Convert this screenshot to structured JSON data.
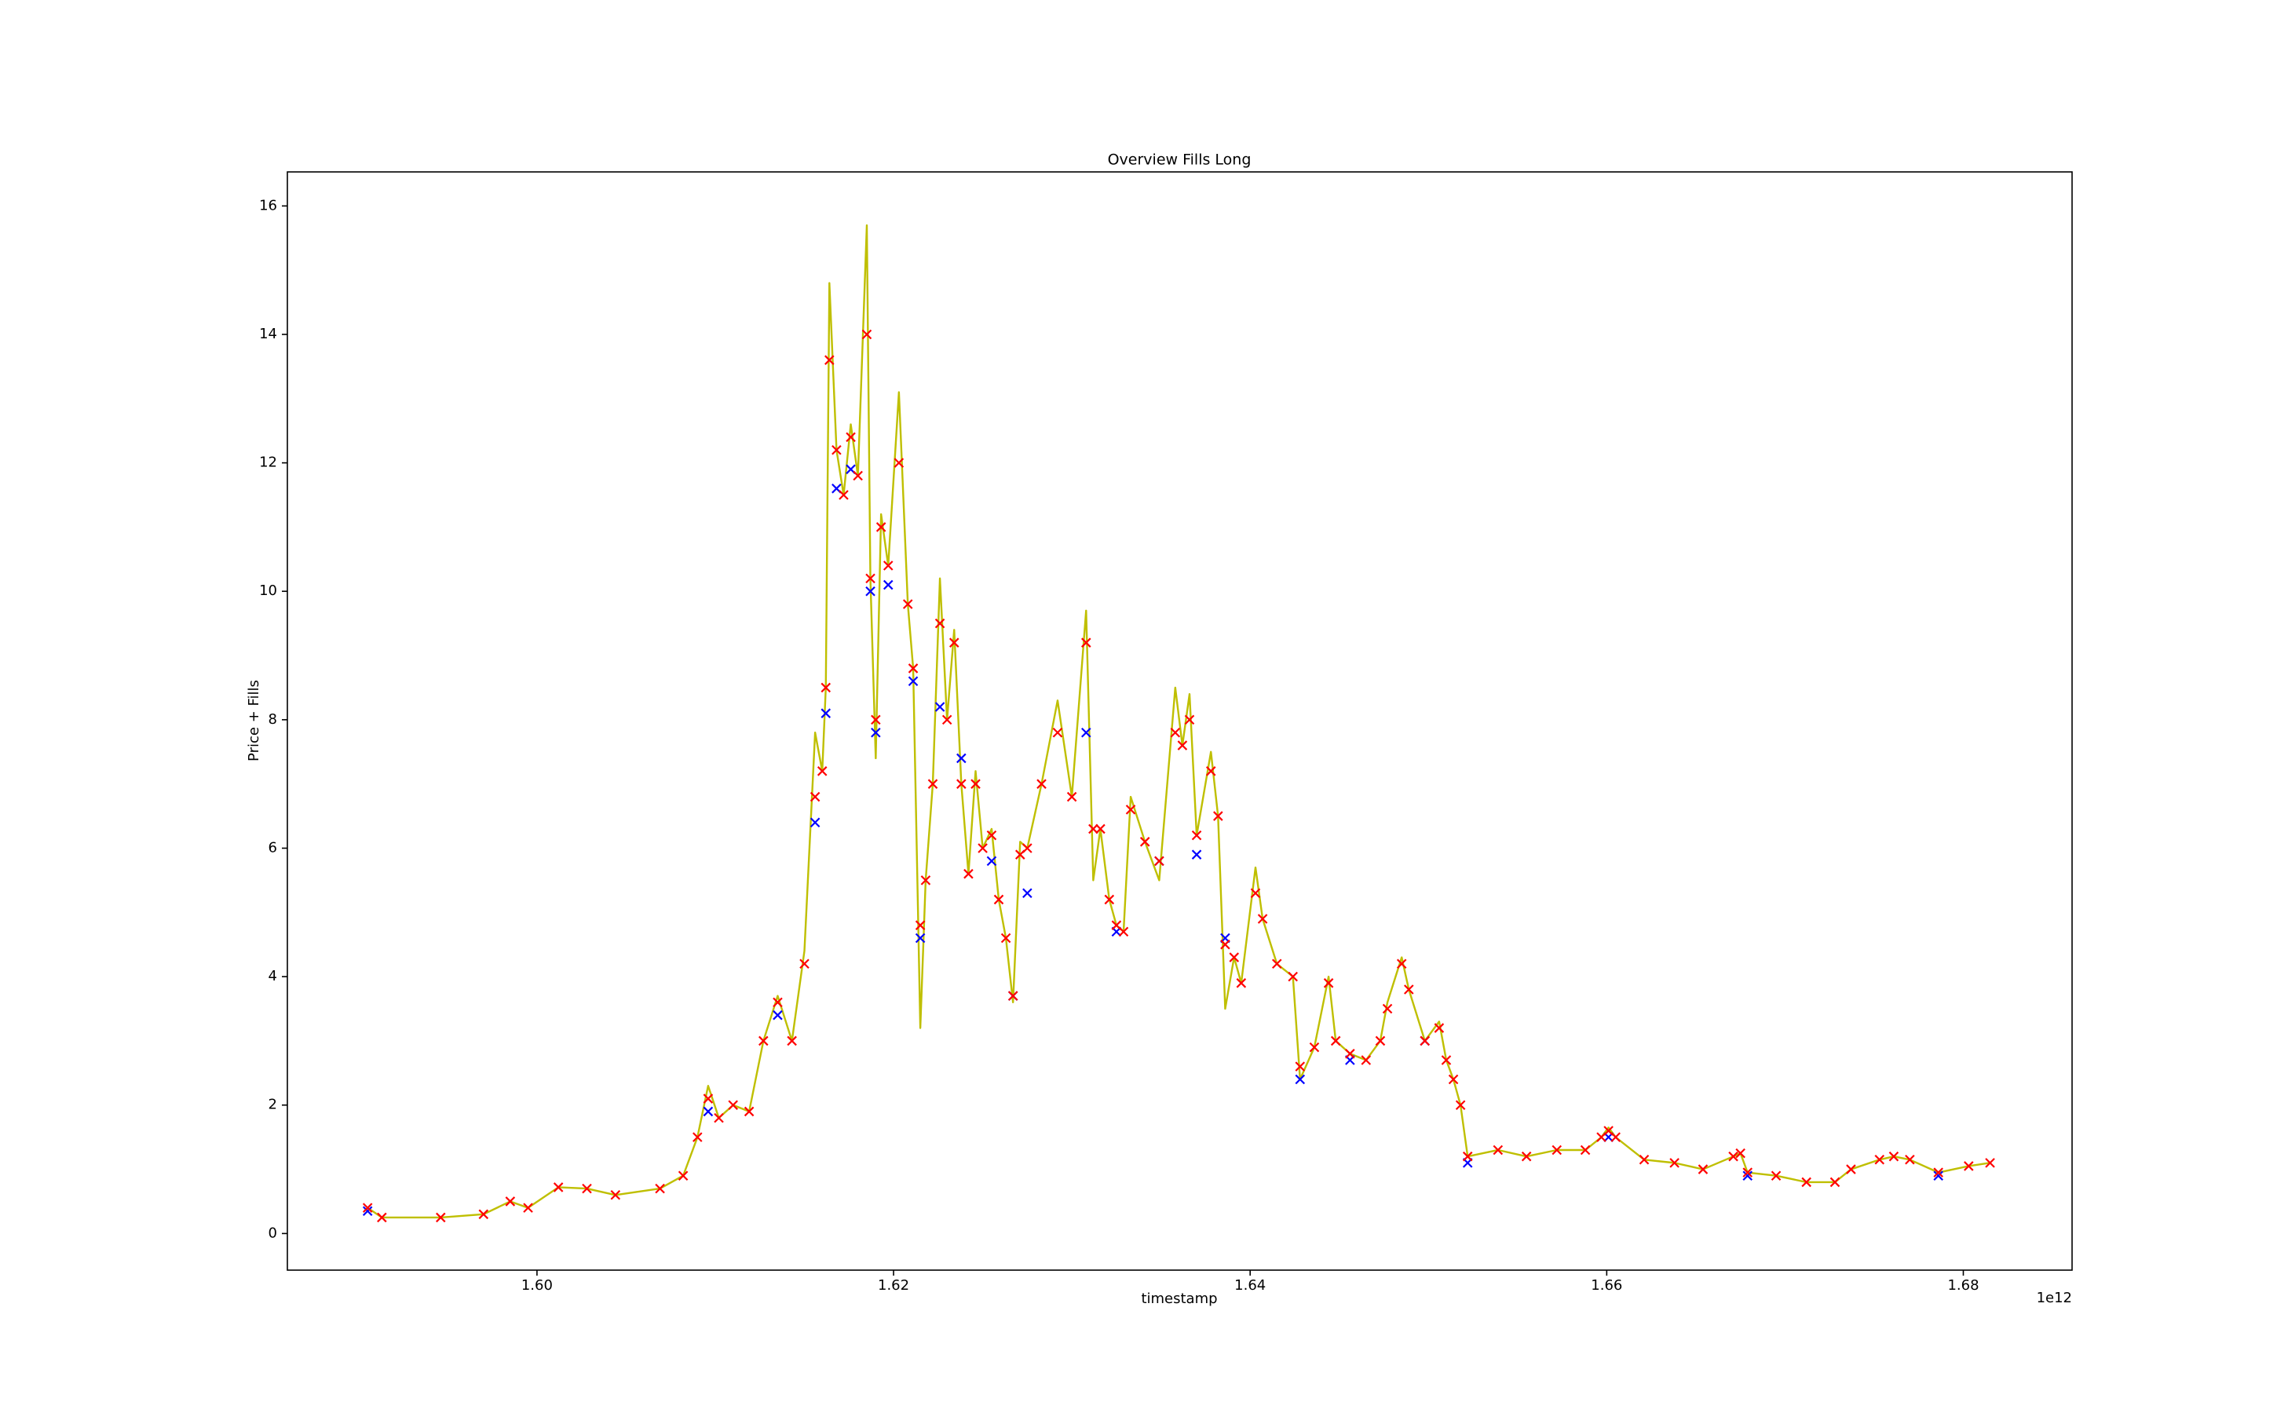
{
  "chart_data": {
    "type": "line",
    "title": "Overview Fills Long",
    "x_label": "timestamp",
    "y_label": "Price + Fills",
    "x_offset_text": "1e12",
    "xlim": [
      1586000000000.0,
      1686100000000.0
    ],
    "ylim": [
      -0.57,
      16.53
    ],
    "xticks": [
      {
        "value": 1600000000000.0,
        "label": "1.60"
      },
      {
        "value": 1620000000000.0,
        "label": "1.62"
      },
      {
        "value": 1640000000000.0,
        "label": "1.64"
      },
      {
        "value": 1660000000000.0,
        "label": "1.66"
      },
      {
        "value": 1680000000000.0,
        "label": "1.68"
      }
    ],
    "yticks": [
      0,
      2,
      4,
      6,
      8,
      10,
      12,
      14,
      16
    ],
    "grid": false,
    "series": [
      {
        "color": "#bfbf00",
        "x": [
          1590500000000.0,
          1591300000000.0,
          1594600000000.0,
          1597000000000.0,
          1598500000000.0,
          1599500000000.0,
          1601200000000.0,
          1602800000000.0,
          1604400000000.0,
          1606900000000.0,
          1608200000000.0,
          1609000000000.0,
          1609600000000.0,
          1610200000000.0,
          1611000000000.0,
          1611900000000.0,
          1612700000000.0,
          1613500000000.0,
          1614300000000.0,
          1615000000000.0,
          1615600000000.0,
          1616000000000.0,
          1616200000000.0,
          1616400000000.0,
          1616800000000.0,
          1617200000000.0,
          1617600000000.0,
          1618000000000.0,
          1618500000000.0,
          1618700000000.0,
          1619000000000.0,
          1619300000000.0,
          1619700000000.0,
          1620300000000.0,
          1620800000000.0,
          1621100000000.0,
          1621500000000.0,
          1621800000000.0,
          1622200000000.0,
          1622600000000.0,
          1623000000000.0,
          1623400000000.0,
          1623800000000.0,
          1624200000000.0,
          1624600000000.0,
          1625000000000.0,
          1625500000000.0,
          1625900000000.0,
          1626300000000.0,
          1626700000000.0,
          1627100000000.0,
          1627500000000.0,
          1628300000000.0,
          1629200000000.0,
          1630000000000.0,
          1630800000000.0,
          1631200000000.0,
          1631600000000.0,
          1632100000000.0,
          1632500000000.0,
          1632900000000.0,
          1633300000000.0,
          1634100000000.0,
          1634900000000.0,
          1635800000000.0,
          1636200000000.0,
          1636600000000.0,
          1637000000000.0,
          1637800000000.0,
          1638200000000.0,
          1638600000000.0,
          1639100000000.0,
          1639500000000.0,
          1640300000000.0,
          1640700000000.0,
          1641500000000.0,
          1642400000000.0,
          1642800000000.0,
          1643600000000.0,
          1644400000000.0,
          1644800000000.0,
          1645600000000.0,
          1646500000000.0,
          1647300000000.0,
          1647700000000.0,
          1648500000000.0,
          1648900000000.0,
          1649800000000.0,
          1650600000000.0,
          1651000000000.0,
          1651400000000.0,
          1651800000000.0,
          1652200000000.0,
          1653900000000.0,
          1655500000000.0,
          1657200000000.0,
          1658800000000.0,
          1659700000000.0,
          1660100000000.0,
          1660500000000.0,
          1662100000000.0,
          1663800000000.0,
          1665400000000.0,
          1667100000000.0,
          1667500000000.0,
          1667900000000.0,
          1669500000000.0,
          1671200000000.0,
          1672800000000.0,
          1673700000000.0,
          1675300000000.0,
          1676100000000.0,
          1677000000000.0,
          1678600000000.0,
          1680300000000.0,
          1681500000000.0
        ],
        "values": [
          0.4,
          0.25,
          0.25,
          0.3,
          0.5,
          0.4,
          0.72,
          0.7,
          0.6,
          0.7,
          0.9,
          1.5,
          2.3,
          1.8,
          2.0,
          1.9,
          3.0,
          3.7,
          3.0,
          4.4,
          7.8,
          7.2,
          8.5,
          14.8,
          12.2,
          11.5,
          12.6,
          11.8,
          15.7,
          10.2,
          7.4,
          11.2,
          10.4,
          13.1,
          9.8,
          8.8,
          3.2,
          5.5,
          7.0,
          10.2,
          8.0,
          9.4,
          7.0,
          5.6,
          7.2,
          6.0,
          6.3,
          5.2,
          4.6,
          3.6,
          6.1,
          6.0,
          7.0,
          8.3,
          6.8,
          9.7,
          5.5,
          6.3,
          5.2,
          4.8,
          4.7,
          6.8,
          6.1,
          5.5,
          8.5,
          7.6,
          8.4,
          6.2,
          7.5,
          6.5,
          3.5,
          4.3,
          3.9,
          5.7,
          4.9,
          4.2,
          4.0,
          2.4,
          2.9,
          4.0,
          3.0,
          2.8,
          2.7,
          3.0,
          3.6,
          4.3,
          3.8,
          3.0,
          3.3,
          2.7,
          2.4,
          2.0,
          1.2,
          1.3,
          1.2,
          1.3,
          1.3,
          1.5,
          1.65,
          1.5,
          1.15,
          1.1,
          1.0,
          1.2,
          1.25,
          0.95,
          0.9,
          0.8,
          0.8,
          1.0,
          1.15,
          1.2,
          1.15,
          0.95,
          1.05,
          1.1
        ]
      },
      {
        "color": "#0000ff",
        "marker": "x",
        "x": [
          1590500000000.0,
          1609600000000.0,
          1613500000000.0,
          1615600000000.0,
          1616200000000.0,
          1616800000000.0,
          1617600000000.0,
          1618700000000.0,
          1619000000000.0,
          1619700000000.0,
          1621100000000.0,
          1621500000000.0,
          1622600000000.0,
          1623800000000.0,
          1625500000000.0,
          1626700000000.0,
          1627500000000.0,
          1630800000000.0,
          1632500000000.0,
          1634900000000.0,
          1637000000000.0,
          1638600000000.0,
          1642800000000.0,
          1645600000000.0,
          1649800000000.0,
          1652200000000.0,
          1660100000000.0,
          1667900000000.0,
          1678600000000.0
        ],
        "values": [
          0.35,
          1.9,
          3.4,
          6.4,
          8.1,
          11.6,
          11.9,
          10.0,
          7.8,
          10.1,
          8.6,
          4.6,
          8.2,
          7.4,
          5.8,
          3.7,
          5.3,
          7.8,
          4.7,
          5.8,
          5.9,
          4.6,
          2.4,
          2.7,
          3.0,
          1.1,
          1.5,
          0.9,
          0.9
        ]
      },
      {
        "color": "#ff0000",
        "marker": "x",
        "x": [
          1590500000000.0,
          1591300000000.0,
          1594600000000.0,
          1597000000000.0,
          1598500000000.0,
          1599500000000.0,
          1601200000000.0,
          1602800000000.0,
          1604400000000.0,
          1606900000000.0,
          1608200000000.0,
          1609000000000.0,
          1609600000000.0,
          1610200000000.0,
          1611000000000.0,
          1611900000000.0,
          1612700000000.0,
          1613500000000.0,
          1614300000000.0,
          1615000000000.0,
          1615600000000.0,
          1616000000000.0,
          1616200000000.0,
          1616400000000.0,
          1616800000000.0,
          1617200000000.0,
          1617600000000.0,
          1618000000000.0,
          1618500000000.0,
          1618700000000.0,
          1619000000000.0,
          1619300000000.0,
          1619700000000.0,
          1620300000000.0,
          1620800000000.0,
          1621100000000.0,
          1621500000000.0,
          1621800000000.0,
          1622200000000.0,
          1622600000000.0,
          1623000000000.0,
          1623400000000.0,
          1623800000000.0,
          1624200000000.0,
          1624600000000.0,
          1625000000000.0,
          1625500000000.0,
          1625900000000.0,
          1626300000000.0,
          1626700000000.0,
          1627100000000.0,
          1627500000000.0,
          1628300000000.0,
          1629200000000.0,
          1630000000000.0,
          1630800000000.0,
          1631200000000.0,
          1631600000000.0,
          1632100000000.0,
          1632500000000.0,
          1632900000000.0,
          1633300000000.0,
          1634100000000.0,
          1634900000000.0,
          1635800000000.0,
          1636200000000.0,
          1636600000000.0,
          1637000000000.0,
          1637800000000.0,
          1638200000000.0,
          1638600000000.0,
          1639100000000.0,
          1639500000000.0,
          1640300000000.0,
          1640700000000.0,
          1641500000000.0,
          1642400000000.0,
          1642800000000.0,
          1643600000000.0,
          1644400000000.0,
          1644800000000.0,
          1645600000000.0,
          1646500000000.0,
          1647300000000.0,
          1647700000000.0,
          1648500000000.0,
          1648900000000.0,
          1649800000000.0,
          1650600000000.0,
          1651000000000.0,
          1651400000000.0,
          1651800000000.0,
          1652200000000.0,
          1653900000000.0,
          1655500000000.0,
          1657200000000.0,
          1658800000000.0,
          1659700000000.0,
          1660100000000.0,
          1660500000000.0,
          1662100000000.0,
          1663800000000.0,
          1665400000000.0,
          1667100000000.0,
          1667500000000.0,
          1667900000000.0,
          1669500000000.0,
          1671200000000.0,
          1672800000000.0,
          1673700000000.0,
          1675300000000.0,
          1676100000000.0,
          1677000000000.0,
          1678600000000.0,
          1680300000000.0,
          1681500000000.0
        ],
        "values": [
          0.4,
          0.25,
          0.25,
          0.3,
          0.5,
          0.4,
          0.72,
          0.7,
          0.6,
          0.7,
          0.9,
          1.5,
          2.1,
          1.8,
          2.0,
          1.9,
          3.0,
          3.6,
          3.0,
          4.2,
          6.8,
          7.2,
          8.5,
          13.6,
          12.2,
          11.5,
          12.4,
          11.8,
          14.0,
          10.2,
          8.0,
          11.0,
          10.4,
          12.0,
          9.8,
          8.8,
          4.8,
          5.5,
          7.0,
          9.5,
          8.0,
          9.2,
          7.0,
          5.6,
          7.0,
          6.0,
          6.2,
          5.2,
          4.6,
          3.7,
          5.9,
          6.0,
          7.0,
          7.8,
          6.8,
          9.2,
          6.3,
          6.3,
          5.2,
          4.8,
          4.7,
          6.6,
          6.1,
          5.8,
          7.8,
          7.6,
          8.0,
          6.2,
          7.2,
          6.5,
          4.5,
          4.3,
          3.9,
          5.3,
          4.9,
          4.2,
          4.0,
          2.6,
          2.9,
          3.9,
          3.0,
          2.8,
          2.7,
          3.0,
          3.5,
          4.2,
          3.8,
          3.0,
          3.2,
          2.7,
          2.4,
          2.0,
          1.2,
          1.3,
          1.2,
          1.3,
          1.3,
          1.5,
          1.6,
          1.5,
          1.15,
          1.1,
          1.0,
          1.2,
          1.25,
          0.95,
          0.9,
          0.8,
          0.8,
          1.0,
          1.15,
          1.2,
          1.15,
          0.95,
          1.05,
          1.1
        ]
      }
    ]
  }
}
